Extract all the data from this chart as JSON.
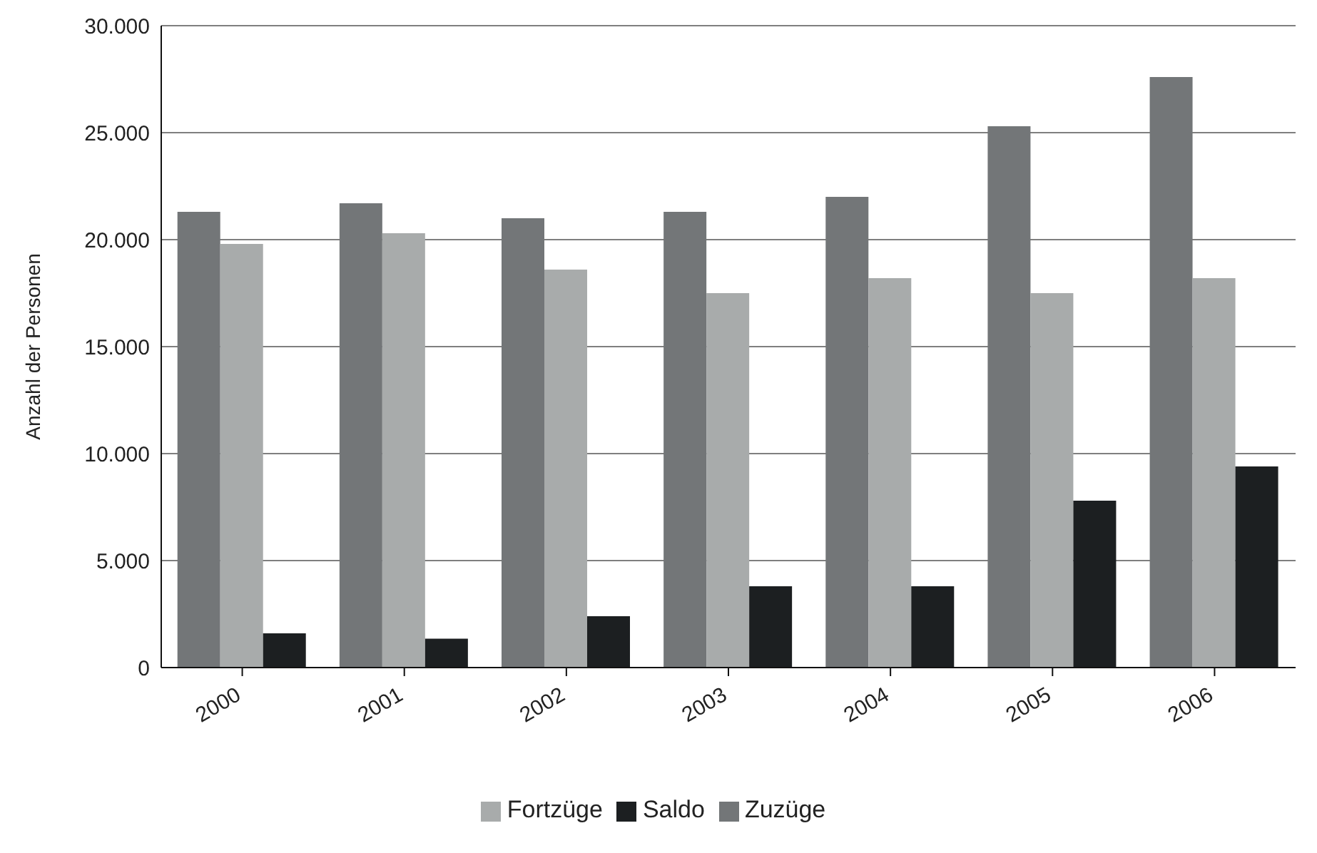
{
  "chart_data": {
    "type": "bar",
    "ylabel": "Anzahl der Personen",
    "categories": [
      "2000",
      "2001",
      "2002",
      "2003",
      "2004",
      "2005",
      "2006"
    ],
    "series": [
      {
        "name": "Zuzüge",
        "color": "#737678",
        "values": [
          21300,
          21700,
          21000,
          21300,
          22000,
          25300,
          27600
        ]
      },
      {
        "name": "Fortzüge",
        "color": "#a8abab",
        "values": [
          19800,
          20300,
          18600,
          17500,
          18200,
          17500,
          18200
        ]
      },
      {
        "name": "Saldo",
        "color": "#1c1f21",
        "values": [
          1600,
          1350,
          2400,
          3800,
          3800,
          7800,
          9400
        ]
      }
    ],
    "ylim": [
      0,
      30000
    ],
    "yticks": [
      0,
      {
        "value": 5000,
        "label": "5.000"
      },
      {
        "value": 10000,
        "label": "10.000"
      },
      {
        "value": 15000,
        "label": "15.000"
      },
      {
        "value": 20000,
        "label": "20.000"
      },
      {
        "value": 25000,
        "label": "25.000"
      },
      {
        "value": 30000,
        "label": "30.000"
      }
    ],
    "grid": "y",
    "legend": "bottom"
  }
}
